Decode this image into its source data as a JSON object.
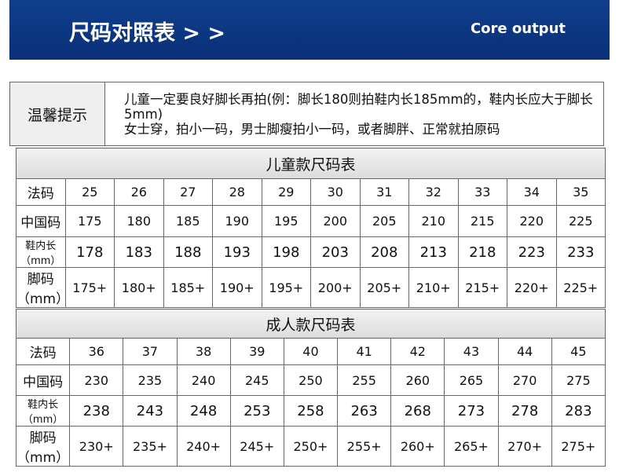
{
  "header": {
    "title": "尺码对照表 > >",
    "subtitle": "Core output"
  },
  "tip": {
    "label": "温馨提示",
    "lines": [
      "儿童一定要良好脚长再拍(例：脚长180则拍鞋内长185mm的，鞋内长应大于脚长5mm)",
      "女士穿，拍小一码，男士脚瘦拍小一码，或者脚胖、正常就拍原码"
    ]
  },
  "kids": {
    "title": "儿童款尺码表",
    "rows": [
      {
        "label": "法码",
        "cells": [
          25,
          26,
          27,
          28,
          29,
          30,
          31,
          32,
          33,
          34,
          35
        ]
      },
      {
        "label": "中国码",
        "cells": [
          175,
          180,
          185,
          190,
          195,
          200,
          205,
          210,
          215,
          220,
          225
        ]
      },
      {
        "label": "鞋内长（mm）",
        "cells": [
          178,
          183,
          188,
          193,
          198,
          203,
          208,
          213,
          218,
          223,
          233
        ]
      },
      {
        "label": "脚码（mm）",
        "cells": [
          "175+",
          "180+",
          "185+",
          "190+",
          "195+",
          "200+",
          "205+",
          "210+",
          "215+",
          "220+",
          "225+"
        ]
      }
    ]
  },
  "adults": {
    "title": "成人款尺码表",
    "rows": [
      {
        "label": "法码",
        "cells": [
          36,
          37,
          38,
          39,
          40,
          41,
          42,
          43,
          44,
          45
        ]
      },
      {
        "label": "中国码",
        "cells": [
          230,
          235,
          240,
          245,
          250,
          255,
          260,
          265,
          270,
          275
        ]
      },
      {
        "label": "鞋内长（mm）",
        "cells": [
          238,
          243,
          248,
          253,
          258,
          263,
          268,
          273,
          278,
          283
        ]
      },
      {
        "label": "脚码（mm）",
        "cells": [
          "230+",
          "235+",
          "240+",
          "245+",
          "250+",
          "255+",
          "260+",
          "265+",
          "270+",
          "275+"
        ]
      }
    ]
  }
}
